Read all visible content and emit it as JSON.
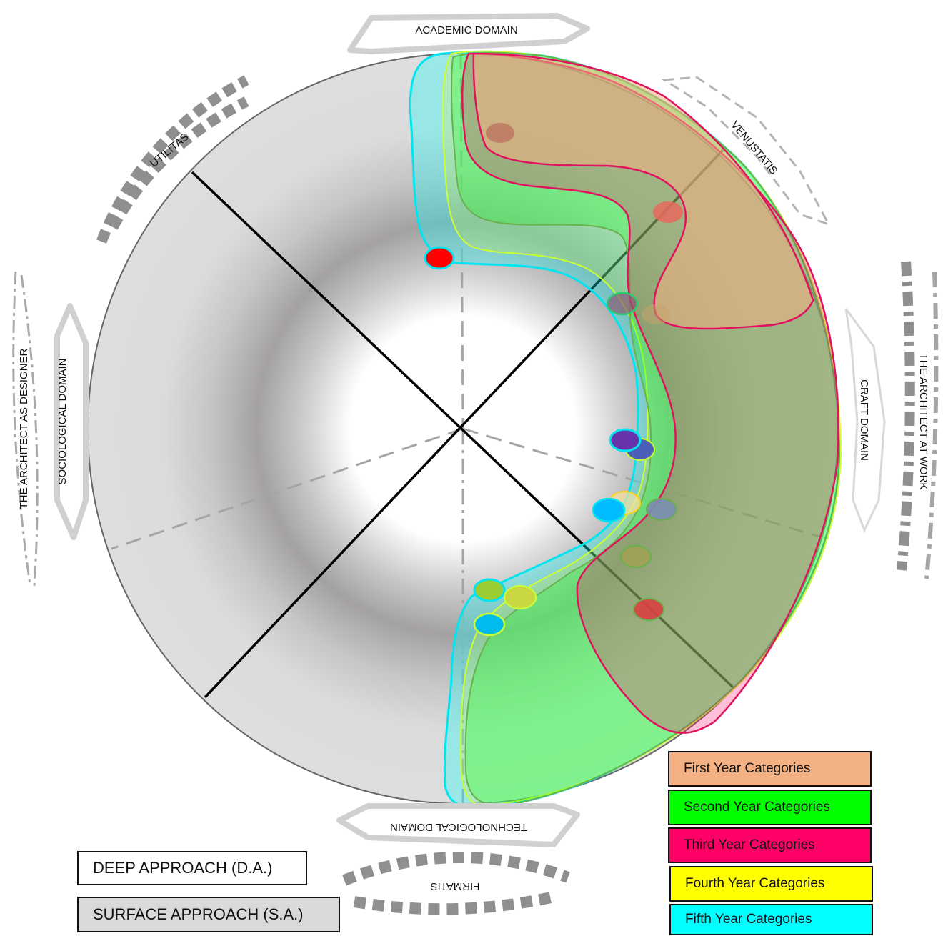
{
  "labels": {
    "academic": "ACADEMIC DOMAIN",
    "venustatis": "VENUSTATIS",
    "craft": "CRAFT DOMAIN",
    "architect_at_work": "THE ARCHITECT AT WORK",
    "technological": "TECHNOLOGICAL DOMAIN",
    "firmatis": "FIRMATIS",
    "sociological": "SOCIOLOGICAL DOMAIN",
    "architect_as_designer": "THE ARCHITECT AS DESIGNER",
    "utilitas": "UTILITAS"
  },
  "approach_legend": [
    {
      "key": "deep",
      "label": "DEEP APPROACH (D.A.)",
      "color": "#ffffff"
    },
    {
      "key": "surface",
      "label": "SURFACE APPROACH (S.A.)",
      "color": "#d9d9d9"
    }
  ],
  "year_legend": [
    {
      "key": "first",
      "label": "First Year Categories",
      "color": "#f4b183"
    },
    {
      "key": "second",
      "label": "Second Year Categories",
      "color": "#00ff00"
    },
    {
      "key": "third",
      "label": "Third Year Categories",
      "color": "#ff0066"
    },
    {
      "key": "fourth",
      "label": "Fourth Year Categories",
      "color": "#ffff00"
    },
    {
      "key": "fifth",
      "label": "Fifth Year Categories",
      "color": "#00ffff"
    }
  ]
}
